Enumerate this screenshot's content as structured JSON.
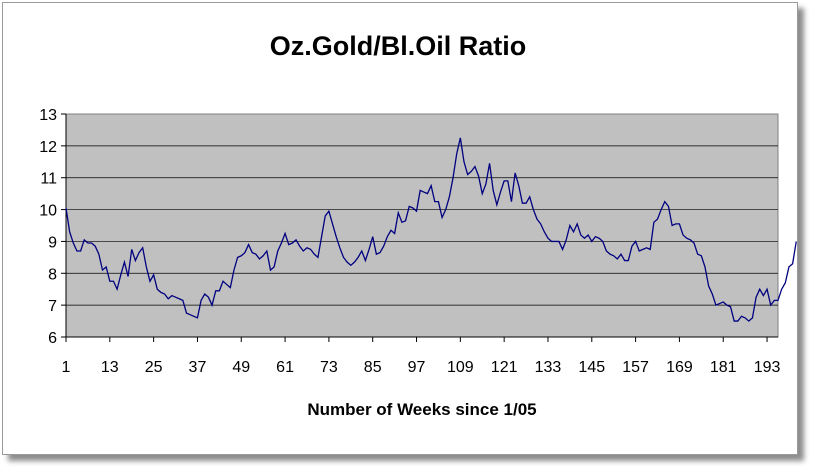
{
  "chart_data": {
    "type": "line",
    "title": "Oz.Gold/Bl.Oil Ratio",
    "xlabel": "Number of Weeks since 1/05",
    "ylabel": "",
    "ylim": [
      6,
      13
    ],
    "yticks": [
      "6",
      "7",
      "8",
      "9",
      "10",
      "11",
      "12",
      "13"
    ],
    "xlim": [
      1,
      196
    ],
    "xticks": [
      "1",
      "13",
      "25",
      "37",
      "49",
      "61",
      "73",
      "85",
      "97",
      "109",
      "121",
      "133",
      "145",
      "157",
      "169",
      "181",
      "193"
    ],
    "grid": true,
    "legend": "none",
    "colors": {
      "plot_bg": "#c0c0c0",
      "line": "#000080",
      "grid": "#000000"
    },
    "series": [
      {
        "x_start": 1,
        "values": [
          10.05,
          9.3,
          8.95,
          8.7,
          8.7,
          9.05,
          8.95,
          8.95,
          8.85,
          8.6,
          8.1,
          8.2,
          7.75,
          7.75,
          7.5,
          7.95,
          8.35,
          7.9,
          8.75,
          8.4,
          8.65,
          8.8,
          8.2,
          7.75,
          7.95,
          7.5,
          7.4,
          7.35,
          7.2,
          7.3,
          7.25,
          7.2,
          7.15,
          6.75,
          6.7,
          6.65,
          6.6,
          7.15,
          7.35,
          7.25,
          7.0,
          7.45,
          7.45,
          7.75,
          7.65,
          7.55,
          8.1,
          8.5,
          8.55,
          8.65,
          8.9,
          8.65,
          8.6,
          8.45,
          8.55,
          8.7,
          8.1,
          8.2,
          8.7,
          8.95,
          9.25,
          8.9,
          8.95,
          9.05,
          8.85,
          8.7,
          8.8,
          8.75,
          8.6,
          8.5,
          9.15,
          9.8,
          9.95,
          9.55,
          9.15,
          8.8,
          8.5,
          8.35,
          8.25,
          8.35,
          8.5,
          8.7,
          8.4,
          8.75,
          9.15,
          8.6,
          8.65,
          8.85,
          9.15,
          9.35,
          9.25,
          9.9,
          9.6,
          9.65,
          10.1,
          10.05,
          9.95,
          10.6,
          10.55,
          10.5,
          10.75,
          10.25,
          10.25,
          9.75,
          10.0,
          10.4,
          11.0,
          11.75,
          12.25,
          11.5,
          11.1,
          11.2,
          11.35,
          11.05,
          10.5,
          10.8,
          11.45,
          10.6,
          10.15,
          10.55,
          10.9,
          10.9,
          10.25,
          11.15,
          10.75,
          10.2,
          10.2,
          10.4,
          10.0,
          9.7,
          9.55,
          9.3,
          9.1,
          9.0,
          9.0,
          9.0,
          8.75,
          9.05,
          9.5,
          9.3,
          9.55,
          9.2,
          9.1,
          9.2,
          9.0,
          9.15,
          9.1,
          9.0,
          8.7,
          8.6,
          8.55,
          8.45,
          8.6,
          8.4,
          8.4,
          8.85,
          9.0,
          8.7,
          8.75,
          8.8,
          8.75,
          9.6,
          9.7,
          10.0,
          10.25,
          10.1,
          9.5,
          9.55,
          9.55,
          9.2,
          9.1,
          9.05,
          8.95,
          8.6,
          8.55,
          8.2,
          7.6,
          7.35,
          7.0,
          7.05,
          7.1,
          7.0,
          6.95,
          6.5,
          6.5,
          6.65,
          6.6,
          6.5,
          6.6,
          7.25,
          7.5,
          7.3,
          7.5,
          7.0,
          7.15,
          7.15,
          7.5,
          7.7,
          8.2,
          8.3,
          9.0
        ]
      }
    ]
  }
}
